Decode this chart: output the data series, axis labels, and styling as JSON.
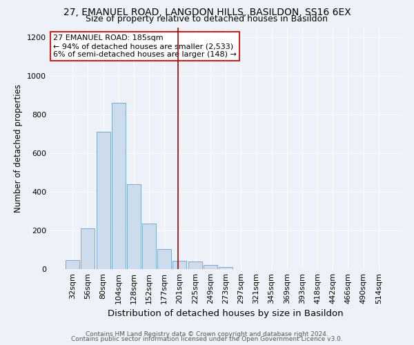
{
  "title": "27, EMANUEL ROAD, LANGDON HILLS, BASILDON, SS16 6EX",
  "subtitle": "Size of property relative to detached houses in Basildon",
  "xlabel": "Distribution of detached houses by size in Basildon",
  "ylabel": "Number of detached properties",
  "footer1": "Contains HM Land Registry data © Crown copyright and database right 2024.",
  "footer2": "Contains public sector information licensed under the Open Government Licence v3.0.",
  "bar_labels": [
    "32sqm",
    "56sqm",
    "80sqm",
    "104sqm",
    "128sqm",
    "152sqm",
    "177sqm",
    "201sqm",
    "225sqm",
    "249sqm",
    "273sqm",
    "297sqm",
    "321sqm",
    "345sqm",
    "369sqm",
    "393sqm",
    "418sqm",
    "442sqm",
    "466sqm",
    "490sqm",
    "514sqm"
  ],
  "bar_values": [
    45,
    210,
    710,
    860,
    440,
    235,
    105,
    42,
    40,
    22,
    12,
    0,
    0,
    0,
    0,
    0,
    0,
    0,
    0,
    0,
    0
  ],
  "bar_color": "#ccdcec",
  "bar_edge_color": "#7aaac8",
  "vline_color": "#aa0000",
  "annotation_text": "27 EMANUEL ROAD: 185sqm\n← 94% of detached houses are smaller (2,533)\n6% of semi-detached houses are larger (148) →",
  "annotation_box_color": "#ffffff",
  "annotation_box_edge": "#cc2222",
  "ylim": [
    0,
    1250
  ],
  "background_color": "#eef2f8",
  "title_fontsize": 10,
  "subtitle_fontsize": 9,
  "xlabel_fontsize": 9.5,
  "ylabel_fontsize": 8.5,
  "tick_fontsize": 8,
  "annotation_fontsize": 8,
  "footer_fontsize": 6.5
}
